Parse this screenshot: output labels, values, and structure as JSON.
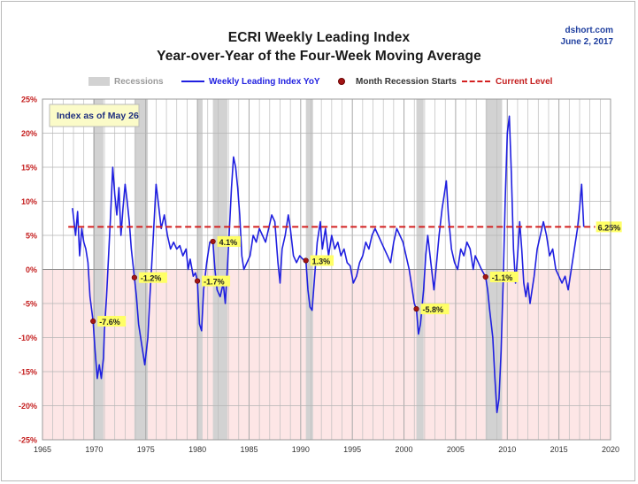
{
  "header": {
    "title_line1": "ECRI Weekly Leading Index",
    "title_line2": "Year-over-Year of the Four-Week Moving Average",
    "source": "dshort.com",
    "date": "June 2, 2017"
  },
  "legend": {
    "recessions": "Recessions",
    "series": "Weekly Leading Index YoY",
    "recession_starts": "Month Recession Starts",
    "current_level": "Current Level"
  },
  "annotation": "Index as of May 26",
  "colors": {
    "line": "#1f1fe0",
    "recession_band": "#d2d2d2",
    "negative_zone": "#fde6e6",
    "current_level_line": "#d42020",
    "marker": "#a31515",
    "label_bg": "#ffff66",
    "source_text": "#1f3f9f"
  },
  "chart_data": {
    "type": "line",
    "title": "ECRI Weekly Leading Index",
    "subtitle": "Year-over-Year of the Four-Week Moving Average",
    "xlim": [
      1965,
      2020
    ],
    "ylim": [
      -25,
      25
    ],
    "x_ticks": [
      1965,
      1970,
      1975,
      1980,
      1985,
      1990,
      1995,
      2000,
      2005,
      2010,
      2015,
      2020
    ],
    "y_ticks": [
      25,
      20,
      15,
      10,
      5,
      0,
      -5,
      -10,
      -15,
      -20,
      -25
    ],
    "y_tick_suffix": "%",
    "grid": true,
    "shaded_region_below_zero": true,
    "current_level": 6.25,
    "current_level_label": "6.25%",
    "recessions": [
      [
        1969.9,
        1970.9
      ],
      [
        1973.9,
        1975.2
      ],
      [
        1980.0,
        1980.5
      ],
      [
        1981.5,
        1982.9
      ],
      [
        1990.5,
        1991.2
      ],
      [
        2001.2,
        2001.9
      ],
      [
        2007.9,
        2009.5
      ]
    ],
    "recession_starts": [
      {
        "x": 1969.9,
        "y": -7.6,
        "label": "-7.6%"
      },
      {
        "x": 1973.9,
        "y": -1.2,
        "label": "-1.2%"
      },
      {
        "x": 1980.0,
        "y": -1.7,
        "label": "-1.7%"
      },
      {
        "x": 1981.5,
        "y": 4.1,
        "label": "4.1%"
      },
      {
        "x": 1990.5,
        "y": 1.3,
        "label": "1.3%"
      },
      {
        "x": 2001.2,
        "y": -5.8,
        "label": "-5.8%"
      },
      {
        "x": 2007.9,
        "y": -1.1,
        "label": "-1.1%"
      }
    ],
    "series": [
      {
        "name": "Weekly Leading Index YoY",
        "points": [
          [
            1967.9,
            9.0
          ],
          [
            1968.2,
            5.0
          ],
          [
            1968.4,
            8.5
          ],
          [
            1968.6,
            2.0
          ],
          [
            1968.8,
            6.0
          ],
          [
            1969.0,
            4.0
          ],
          [
            1969.2,
            3.0
          ],
          [
            1969.4,
            1.0
          ],
          [
            1969.6,
            -4.0
          ],
          [
            1969.9,
            -7.6
          ],
          [
            1970.1,
            -12.0
          ],
          [
            1970.3,
            -16.0
          ],
          [
            1970.5,
            -14.0
          ],
          [
            1970.7,
            -16.0
          ],
          [
            1970.9,
            -13.0
          ],
          [
            1971.0,
            -9.0
          ],
          [
            1971.2,
            -4.0
          ],
          [
            1971.4,
            2.0
          ],
          [
            1971.6,
            8.0
          ],
          [
            1971.8,
            15.0
          ],
          [
            1972.0,
            11.0
          ],
          [
            1972.2,
            8.0
          ],
          [
            1972.4,
            12.0
          ],
          [
            1972.6,
            5.0
          ],
          [
            1972.8,
            9.0
          ],
          [
            1973.0,
            12.5
          ],
          [
            1973.2,
            10.0
          ],
          [
            1973.4,
            7.0
          ],
          [
            1973.6,
            3.0
          ],
          [
            1973.9,
            -1.2
          ],
          [
            1974.1,
            -4.0
          ],
          [
            1974.3,
            -8.0
          ],
          [
            1974.6,
            -11.0
          ],
          [
            1974.9,
            -14.0
          ],
          [
            1975.2,
            -10.0
          ],
          [
            1975.4,
            -4.0
          ],
          [
            1975.7,
            4.0
          ],
          [
            1976.0,
            12.5
          ],
          [
            1976.2,
            10.0
          ],
          [
            1976.5,
            6.0
          ],
          [
            1976.8,
            8.0
          ],
          [
            1977.1,
            5.0
          ],
          [
            1977.4,
            3.0
          ],
          [
            1977.7,
            4.0
          ],
          [
            1978.0,
            3.0
          ],
          [
            1978.3,
            3.5
          ],
          [
            1978.6,
            2.0
          ],
          [
            1978.9,
            3.0
          ],
          [
            1979.1,
            0.0
          ],
          [
            1979.3,
            1.5
          ],
          [
            1979.6,
            -1.0
          ],
          [
            1979.8,
            -0.5
          ],
          [
            1980.0,
            -1.7
          ],
          [
            1980.2,
            -8.0
          ],
          [
            1980.4,
            -9.0
          ],
          [
            1980.6,
            -3.0
          ],
          [
            1980.9,
            1.0
          ],
          [
            1981.2,
            4.0
          ],
          [
            1981.5,
            4.1
          ],
          [
            1981.7,
            0.0
          ],
          [
            1981.9,
            -3.0
          ],
          [
            1982.2,
            -4.0
          ],
          [
            1982.5,
            -2.0
          ],
          [
            1982.7,
            -5.0
          ],
          [
            1982.9,
            0.0
          ],
          [
            1983.1,
            6.0
          ],
          [
            1983.3,
            12.0
          ],
          [
            1983.5,
            16.5
          ],
          [
            1983.7,
            15.0
          ],
          [
            1983.9,
            12.0
          ],
          [
            1984.1,
            8.0
          ],
          [
            1984.3,
            2.0
          ],
          [
            1984.5,
            0.0
          ],
          [
            1984.8,
            1.0
          ],
          [
            1985.1,
            2.0
          ],
          [
            1985.4,
            5.0
          ],
          [
            1985.7,
            4.0
          ],
          [
            1986.0,
            6.0
          ],
          [
            1986.3,
            5.0
          ],
          [
            1986.6,
            4.0
          ],
          [
            1986.9,
            6.0
          ],
          [
            1987.2,
            8.0
          ],
          [
            1987.5,
            7.0
          ],
          [
            1987.8,
            1.0
          ],
          [
            1988.0,
            -2.0
          ],
          [
            1988.2,
            3.0
          ],
          [
            1988.5,
            5.0
          ],
          [
            1988.8,
            8.0
          ],
          [
            1989.0,
            6.0
          ],
          [
            1989.3,
            2.0
          ],
          [
            1989.6,
            1.0
          ],
          [
            1989.9,
            2.0
          ],
          [
            1990.2,
            1.5
          ],
          [
            1990.5,
            1.3
          ],
          [
            1990.7,
            -3.0
          ],
          [
            1990.9,
            -5.5
          ],
          [
            1991.1,
            -6.0
          ],
          [
            1991.3,
            -2.0
          ],
          [
            1991.6,
            4.0
          ],
          [
            1991.9,
            7.0
          ],
          [
            1992.1,
            3.0
          ],
          [
            1992.4,
            6.0
          ],
          [
            1992.7,
            2.0
          ],
          [
            1993.0,
            5.0
          ],
          [
            1993.3,
            3.0
          ],
          [
            1993.6,
            4.0
          ],
          [
            1993.9,
            2.0
          ],
          [
            1994.2,
            3.0
          ],
          [
            1994.5,
            1.0
          ],
          [
            1994.8,
            0.5
          ],
          [
            1995.1,
            -2.0
          ],
          [
            1995.4,
            -1.0
          ],
          [
            1995.7,
            1.0
          ],
          [
            1996.0,
            2.0
          ],
          [
            1996.3,
            4.0
          ],
          [
            1996.6,
            3.0
          ],
          [
            1996.9,
            5.0
          ],
          [
            1997.2,
            6.0
          ],
          [
            1997.5,
            5.0
          ],
          [
            1997.8,
            4.0
          ],
          [
            1998.1,
            3.0
          ],
          [
            1998.4,
            2.0
          ],
          [
            1998.7,
            1.0
          ],
          [
            1999.0,
            4.0
          ],
          [
            1999.3,
            6.0
          ],
          [
            1999.6,
            5.0
          ],
          [
            1999.9,
            4.0
          ],
          [
            2000.2,
            2.0
          ],
          [
            2000.5,
            0.0
          ],
          [
            2000.8,
            -3.0
          ],
          [
            2001.0,
            -5.0
          ],
          [
            2001.2,
            -5.8
          ],
          [
            2001.4,
            -9.5
          ],
          [
            2001.6,
            -8.0
          ],
          [
            2001.9,
            -3.0
          ],
          [
            2002.1,
            2.0
          ],
          [
            2002.3,
            5.0
          ],
          [
            2002.6,
            1.0
          ],
          [
            2002.9,
            -3.0
          ],
          [
            2003.1,
            0.0
          ],
          [
            2003.4,
            5.0
          ],
          [
            2003.7,
            9.0
          ],
          [
            2003.9,
            11.0
          ],
          [
            2004.1,
            13.0
          ],
          [
            2004.3,
            8.0
          ],
          [
            2004.6,
            3.0
          ],
          [
            2004.9,
            1.0
          ],
          [
            2005.2,
            0.0
          ],
          [
            2005.5,
            3.0
          ],
          [
            2005.8,
            2.0
          ],
          [
            2006.1,
            4.0
          ],
          [
            2006.4,
            3.0
          ],
          [
            2006.7,
            0.0
          ],
          [
            2006.9,
            2.0
          ],
          [
            2007.2,
            1.0
          ],
          [
            2007.5,
            0.0
          ],
          [
            2007.9,
            -1.1
          ],
          [
            2008.1,
            -3.0
          ],
          [
            2008.3,
            -6.0
          ],
          [
            2008.6,
            -10.0
          ],
          [
            2008.8,
            -16.0
          ],
          [
            2009.0,
            -21.0
          ],
          [
            2009.2,
            -19.0
          ],
          [
            2009.4,
            -12.0
          ],
          [
            2009.6,
            -2.0
          ],
          [
            2009.8,
            10.0
          ],
          [
            2010.0,
            20.0
          ],
          [
            2010.2,
            22.5
          ],
          [
            2010.4,
            14.0
          ],
          [
            2010.6,
            3.0
          ],
          [
            2010.8,
            -2.0
          ],
          [
            2011.0,
            2.0
          ],
          [
            2011.2,
            7.0
          ],
          [
            2011.4,
            3.0
          ],
          [
            2011.6,
            -2.0
          ],
          [
            2011.8,
            -4.0
          ],
          [
            2012.0,
            -2.0
          ],
          [
            2012.2,
            -5.0
          ],
          [
            2012.4,
            -3.0
          ],
          [
            2012.6,
            -1.0
          ],
          [
            2012.9,
            3.0
          ],
          [
            2013.2,
            5.0
          ],
          [
            2013.5,
            7.0
          ],
          [
            2013.8,
            5.0
          ],
          [
            2014.1,
            2.0
          ],
          [
            2014.4,
            3.0
          ],
          [
            2014.7,
            0.0
          ],
          [
            2015.0,
            -1.0
          ],
          [
            2015.3,
            -2.0
          ],
          [
            2015.6,
            -1.0
          ],
          [
            2015.9,
            -3.0
          ],
          [
            2016.2,
            0.0
          ],
          [
            2016.5,
            3.0
          ],
          [
            2016.8,
            6.0
          ],
          [
            2017.0,
            9.0
          ],
          [
            2017.2,
            12.5
          ],
          [
            2017.4,
            6.25
          ]
        ]
      }
    ]
  }
}
